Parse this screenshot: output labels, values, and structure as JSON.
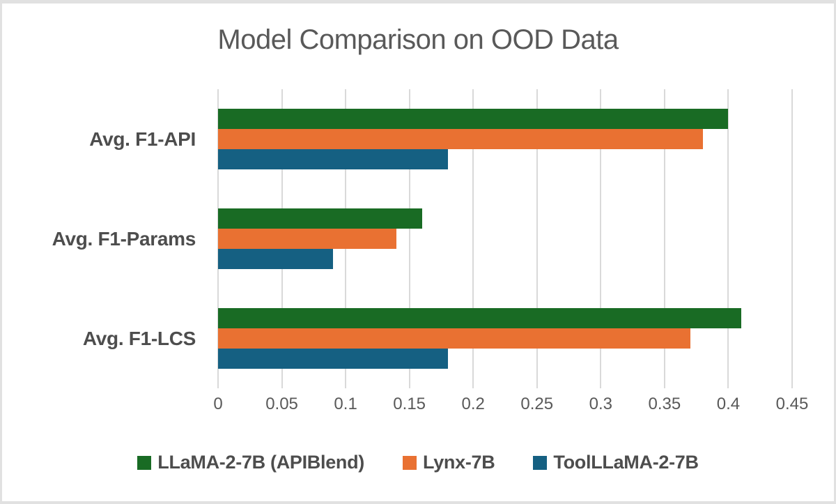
{
  "chart_data": {
    "type": "bar",
    "orientation": "horizontal",
    "title": "Model Comparison on OOD Data",
    "categories": [
      "Avg. F1-API",
      "Avg. F1-Params",
      "Avg. F1-LCS"
    ],
    "series": [
      {
        "name": "LLaMA-2-7B (APIBlend)",
        "color": "#196B24",
        "values": [
          0.4,
          0.16,
          0.41
        ]
      },
      {
        "name": "Lynx-7B",
        "color": "#E97132",
        "values": [
          0.38,
          0.14,
          0.37
        ]
      },
      {
        "name": "ToolLLaMA-2-7B",
        "color": "#156082",
        "values": [
          0.18,
          0.09,
          0.18
        ]
      }
    ],
    "x_axis": {
      "min": 0,
      "max": 0.45,
      "tick_interval": 0.05,
      "tick_labels": [
        "0",
        "0.05",
        "0.1",
        "0.15",
        "0.2",
        "0.25",
        "0.3",
        "0.35",
        "0.4",
        "0.45"
      ]
    },
    "legend_position": "bottom",
    "grid": true,
    "colors": {
      "gridline": "#D9D9D9",
      "axis_text": "#595959",
      "title_text": "#595959",
      "label_text": "#4D4D4D",
      "frame_border": "#E1E1E1",
      "background": "#FFFFFF"
    }
  }
}
